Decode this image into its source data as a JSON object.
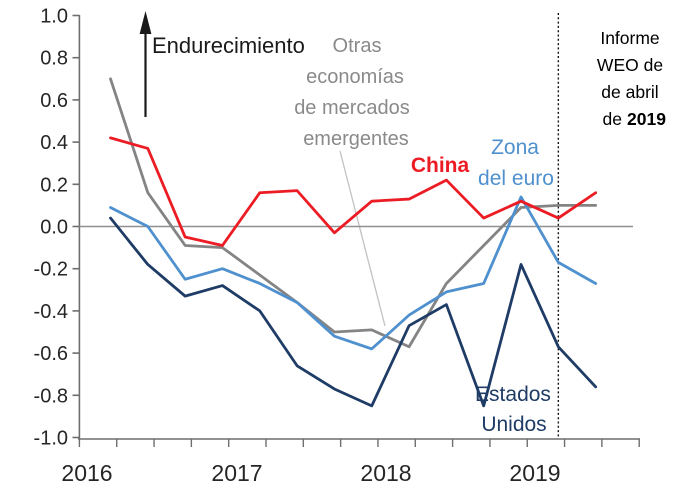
{
  "annotations": {
    "endurecimiento": "Endurecimiento",
    "otras": {
      "lines": [
        "Otras",
        "economías",
        "de mercados",
        "emergentes"
      ]
    },
    "china": "China",
    "zona": {
      "lines": [
        "Zona",
        "del euro"
      ]
    },
    "estados": {
      "lines": [
        "Estados",
        "Unidos"
      ]
    },
    "informe": {
      "lines": [
        "Informe",
        "WEO de",
        "de abril"
      ],
      "last_prefix": "de",
      "last_bold": "2019"
    }
  },
  "chart_data": {
    "type": "line",
    "x": [
      "2016-T1",
      "2016-T2",
      "2016-T3",
      "2016-T4",
      "2017-T1",
      "2017-T2",
      "2017-T3",
      "2017-T4",
      "2018-T1",
      "2018-T2",
      "2018-T3",
      "2018-T4",
      "2019-T1",
      "2019-T2"
    ],
    "series": [
      {
        "id": "otras-economias-emergentes",
        "name": "Otras economías de mercados emergentes",
        "color": "#848484",
        "values": [
          0.7,
          0.16,
          -0.09,
          -0.1,
          -0.23,
          -0.36,
          -0.5,
          -0.49,
          -0.57,
          -0.27,
          -0.09,
          0.09,
          0.1,
          0.1
        ]
      },
      {
        "id": "zona-del-euro",
        "name": "Zona del euro",
        "color": "#4f90ce",
        "values": [
          0.09,
          0.0,
          -0.25,
          -0.2,
          -0.27,
          -0.36,
          -0.52,
          -0.58,
          -0.42,
          -0.31,
          -0.27,
          0.14,
          -0.17,
          -0.27
        ]
      },
      {
        "id": "estados-unidos",
        "name": "Estados Unidos",
        "color": "#1f3c66",
        "values": [
          0.04,
          -0.18,
          -0.33,
          -0.28,
          -0.4,
          -0.66,
          -0.77,
          -0.85,
          -0.47,
          -0.37,
          -0.85,
          -0.18,
          -0.57,
          -0.76
        ]
      },
      {
        "id": "china",
        "name": "China",
        "color": "#ec1c24",
        "values": [
          0.42,
          0.37,
          -0.05,
          -0.09,
          0.16,
          0.17,
          -0.03,
          0.12,
          0.13,
          0.22,
          0.04,
          0.12,
          0.04,
          0.16
        ]
      }
    ],
    "ylim": [
      -1.0,
      1.0
    ],
    "y_ticks": [
      "1.0",
      "0.8",
      "0.6",
      "0.4",
      "0.2",
      "0.0",
      "-0.2",
      "-0.4",
      "-0.6",
      "-0.8",
      "-1.0"
    ],
    "x_year_labels": [
      "2016",
      "2017",
      "2018",
      "2019"
    ],
    "zero_line": true,
    "grid": false,
    "legend_position": "inline-annotations",
    "dashed_vline_x": "2019-T1",
    "arrow_label_direction": "up"
  }
}
